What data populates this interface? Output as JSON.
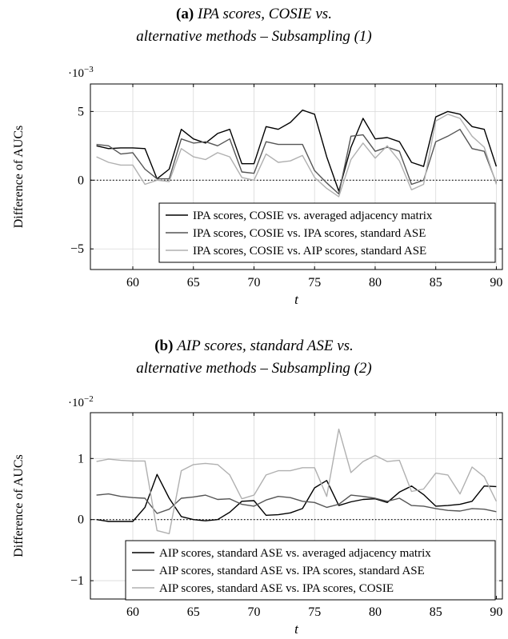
{
  "chart_data": [
    {
      "type": "line",
      "panel_label": "(a)",
      "title_line1": "IPA scores, COSIE vs.",
      "title_line2": "alternative methods – Subsampling (1)",
      "xlabel": "t",
      "ylabel": "Difference of AUCs",
      "scale_label": "·10",
      "scale_exp": "−3",
      "xlim": [
        56.5,
        90.5
      ],
      "ylim": [
        -6.5,
        7
      ],
      "xticks": [
        60,
        65,
        70,
        75,
        80,
        85,
        90
      ],
      "yticks": [
        {
          "value": 5,
          "label": "5"
        },
        {
          "value": 0,
          "label": "0"
        },
        {
          "value": -5,
          "label": "−5"
        }
      ],
      "grid": true,
      "reference_line": 0,
      "legend_position": "lower-right",
      "x": [
        57,
        58,
        59,
        60,
        61,
        62,
        63,
        64,
        65,
        66,
        67,
        68,
        69,
        70,
        71,
        72,
        73,
        74,
        75,
        76,
        77,
        78,
        79,
        80,
        81,
        82,
        83,
        84,
        85,
        86,
        87,
        88,
        89,
        90
      ],
      "series": [
        {
          "name": "IPA scores, COSIE vs. averaged adjacency matrix",
          "color": "#000000",
          "values": [
            2.5,
            2.3,
            2.35,
            2.35,
            2.3,
            0.1,
            0.8,
            3.7,
            3.0,
            2.7,
            3.4,
            3.7,
            1.2,
            1.2,
            3.9,
            3.7,
            4.2,
            5.1,
            4.8,
            1.7,
            -0.8,
            2.4,
            4.5,
            3.0,
            3.1,
            2.8,
            1.3,
            1.0,
            4.6,
            5.0,
            4.8,
            3.9,
            3.7,
            1.0
          ]
        },
        {
          "name": "IPA scores, COSIE vs. IPA scores, standard ASE",
          "color": "#555555",
          "values": [
            2.6,
            2.5,
            1.9,
            2.0,
            0.8,
            0.1,
            0.1,
            3.0,
            2.7,
            2.8,
            2.5,
            3.0,
            0.6,
            0.5,
            2.8,
            2.6,
            2.6,
            2.6,
            0.7,
            -0.2,
            -1.0,
            3.2,
            3.3,
            2.1,
            2.4,
            2.1,
            -0.3,
            0.0,
            2.8,
            3.2,
            3.7,
            2.3,
            2.1,
            -0.2
          ]
        },
        {
          "name": "IPA scores, COSIE vs. AIP scores, standard ASE",
          "color": "#b0b0b0",
          "values": [
            1.7,
            1.3,
            1.1,
            1.1,
            -0.3,
            0.0,
            -0.1,
            2.3,
            1.7,
            1.5,
            2.0,
            1.7,
            0.2,
            0.0,
            1.9,
            1.3,
            1.4,
            1.8,
            0.2,
            -0.6,
            -1.2,
            1.5,
            2.7,
            1.6,
            2.5,
            1.4,
            -0.7,
            -0.3,
            4.3,
            4.8,
            4.5,
            3.2,
            2.4,
            -0.3
          ]
        }
      ]
    },
    {
      "type": "line",
      "panel_label": "(b)",
      "title_line1": "AIP scores, standard ASE vs.",
      "title_line2": "alternative methods – Subsampling (2)",
      "xlabel": "t",
      "ylabel": "Difference of AUCs",
      "scale_label": "·10",
      "scale_exp": "−2",
      "xlim": [
        56.5,
        90.5
      ],
      "ylim": [
        -1.3,
        1.75
      ],
      "xticks": [
        60,
        65,
        70,
        75,
        80,
        85,
        90
      ],
      "yticks": [
        {
          "value": 1,
          "label": "1"
        },
        {
          "value": 0,
          "label": "0"
        },
        {
          "value": -1,
          "label": "−1"
        }
      ],
      "grid": true,
      "reference_line": 0,
      "legend_position": "lower-right",
      "x": [
        57,
        58,
        59,
        60,
        61,
        62,
        63,
        64,
        65,
        66,
        67,
        68,
        69,
        70,
        71,
        72,
        73,
        74,
        75,
        76,
        77,
        78,
        79,
        80,
        81,
        82,
        83,
        84,
        85,
        86,
        87,
        88,
        89,
        90
      ],
      "series": [
        {
          "name": "AIP scores, standard ASE vs. averaged adjacency matrix",
          "color": "#000000",
          "values": [
            0.0,
            -0.03,
            -0.03,
            -0.03,
            0.2,
            0.74,
            0.35,
            0.05,
            0.0,
            -0.02,
            0.0,
            0.12,
            0.3,
            0.31,
            0.07,
            0.08,
            0.11,
            0.18,
            0.52,
            0.64,
            0.23,
            0.29,
            0.33,
            0.34,
            0.28,
            0.45,
            0.55,
            0.41,
            0.22,
            0.23,
            0.25,
            0.3,
            0.55,
            0.54
          ]
        },
        {
          "name": "AIP scores, standard ASE vs. IPA scores, standard ASE",
          "color": "#555555",
          "values": [
            0.4,
            0.42,
            0.38,
            0.36,
            0.35,
            0.1,
            0.17,
            0.35,
            0.37,
            0.4,
            0.33,
            0.34,
            0.25,
            0.22,
            0.32,
            0.38,
            0.36,
            0.3,
            0.28,
            0.2,
            0.25,
            0.4,
            0.38,
            0.35,
            0.3,
            0.35,
            0.23,
            0.22,
            0.18,
            0.15,
            0.14,
            0.18,
            0.17,
            0.13
          ]
        },
        {
          "name": "AIP scores, standard ASE vs. IPA scores, COSIE",
          "color": "#b0b0b0",
          "values": [
            0.95,
            0.99,
            0.97,
            0.96,
            0.96,
            -0.18,
            -0.23,
            0.8,
            0.9,
            0.92,
            0.9,
            0.73,
            0.34,
            0.4,
            0.73,
            0.8,
            0.8,
            0.85,
            0.85,
            0.38,
            1.48,
            0.77,
            0.95,
            1.05,
            0.95,
            0.97,
            0.46,
            0.5,
            0.76,
            0.73,
            0.42,
            0.86,
            0.7,
            0.3
          ]
        }
      ]
    }
  ]
}
